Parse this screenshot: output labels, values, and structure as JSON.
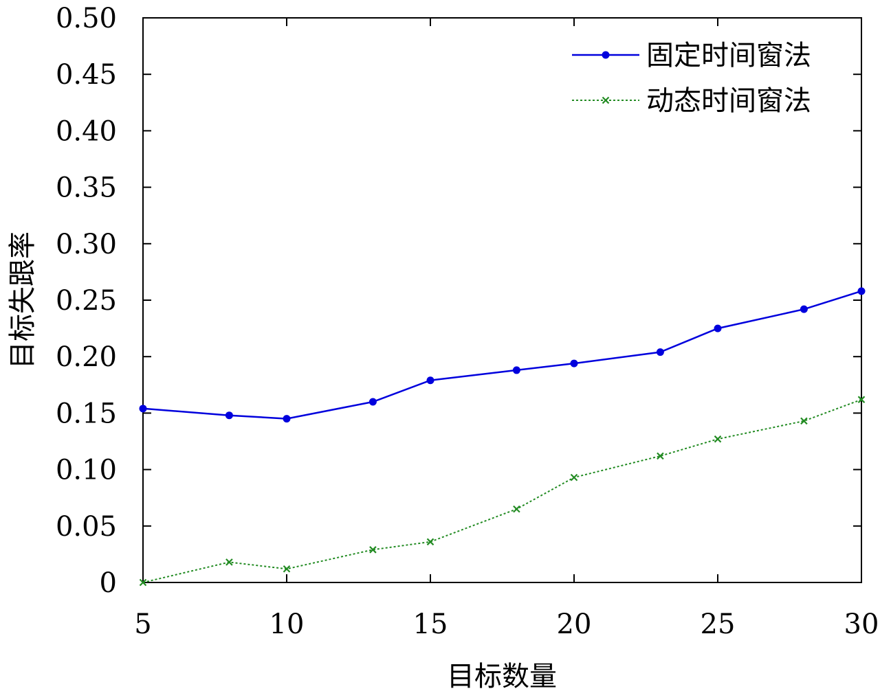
{
  "chart_data": {
    "type": "line",
    "xlabel": "目标数量",
    "ylabel": "目标失跟率",
    "xlim": [
      5,
      30
    ],
    "ylim": [
      0,
      0.5
    ],
    "x_ticks": [
      "5",
      "10",
      "15",
      "20",
      "25",
      "30"
    ],
    "y_ticks": [
      "0",
      "0.05",
      "0.10",
      "0.15",
      "0.20",
      "0.25",
      "0.30",
      "0.35",
      "0.40",
      "0.45",
      "0.50"
    ],
    "grid": false,
    "legend_position": "top-right",
    "x": [
      5,
      8,
      10,
      13,
      15,
      18,
      20,
      23,
      25,
      28,
      30
    ],
    "series": [
      {
        "name": "固定时间窗法",
        "color": "#0000dd",
        "style": "solid",
        "marker": "circle",
        "values": [
          0.154,
          0.148,
          0.145,
          0.16,
          0.179,
          0.188,
          0.194,
          0.204,
          0.225,
          0.242,
          0.258
        ]
      },
      {
        "name": "动态时间窗法",
        "color": "#228b22",
        "style": "dotted",
        "marker": "x",
        "values": [
          0.0,
          0.018,
          0.012,
          0.029,
          0.036,
          0.065,
          0.093,
          0.112,
          0.127,
          0.143,
          0.162
        ]
      }
    ]
  }
}
